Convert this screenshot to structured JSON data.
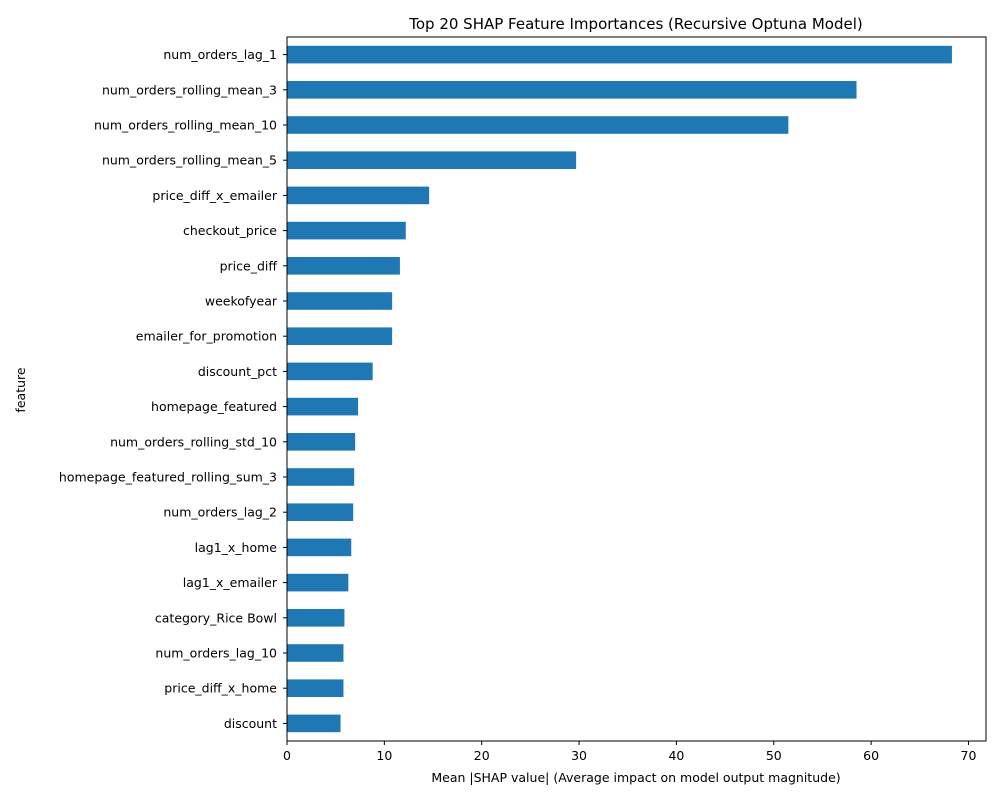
{
  "chart_data": {
    "type": "bar",
    "orientation": "horizontal",
    "title": "Top 20 SHAP Feature Importances (Recursive Optuna Model)",
    "xlabel": "Mean |SHAP value| (Average impact on model output magnitude)",
    "ylabel": "feature",
    "xlim": [
      0,
      71.8
    ],
    "xticks": [
      0,
      10,
      20,
      30,
      40,
      50,
      60,
      70
    ],
    "grid": false,
    "bar_color": "#1f77b4",
    "categories": [
      "num_orders_lag_1",
      "num_orders_rolling_mean_3",
      "num_orders_rolling_mean_10",
      "num_orders_rolling_mean_5",
      "price_diff_x_emailer",
      "checkout_price",
      "price_diff",
      "weekofyear",
      "emailer_for_promotion",
      "discount_pct",
      "homepage_featured",
      "num_orders_rolling_std_10",
      "homepage_featured_rolling_sum_3",
      "num_orders_lag_2",
      "lag1_x_home",
      "lag1_x_emailer",
      "category_Rice Bowl",
      "num_orders_lag_10",
      "price_diff_x_home",
      "discount"
    ],
    "values": [
      68.3,
      58.5,
      51.5,
      29.7,
      14.6,
      12.2,
      11.6,
      10.8,
      10.8,
      8.8,
      7.3,
      7.0,
      6.9,
      6.8,
      6.6,
      6.3,
      5.9,
      5.8,
      5.8,
      5.5
    ]
  }
}
